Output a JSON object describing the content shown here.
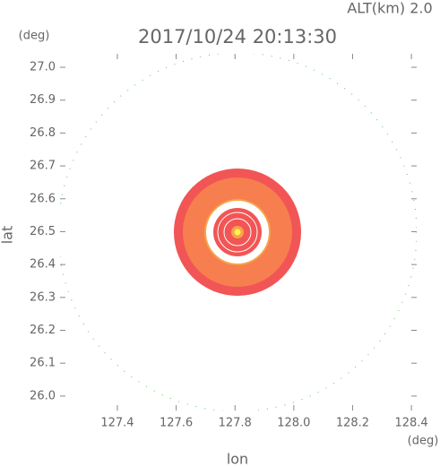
{
  "chart_data": {
    "type": "radar",
    "title": "2017/10/24 20:13:30",
    "altitude_label": "ALT(km)  2.0",
    "ylabel": "lat",
    "xlabel": "lon",
    "y_unit": "(deg)",
    "x_unit": "(deg)",
    "xlim": [
      127.205,
      128.418
    ],
    "ylim": [
      25.956,
      27.041
    ],
    "xticks": [
      127.4,
      127.6,
      127.8,
      {
        "value": 128,
        "label": "128.0"
      },
      128.2,
      128.4
    ],
    "yticks": [
      {
        "value": 26,
        "label": "26.0"
      },
      26.1,
      26.2,
      26.3,
      26.4,
      26.5,
      26.6,
      26.7,
      26.8,
      26.9,
      {
        "value": 27,
        "label": "27.0"
      }
    ]
  }
}
